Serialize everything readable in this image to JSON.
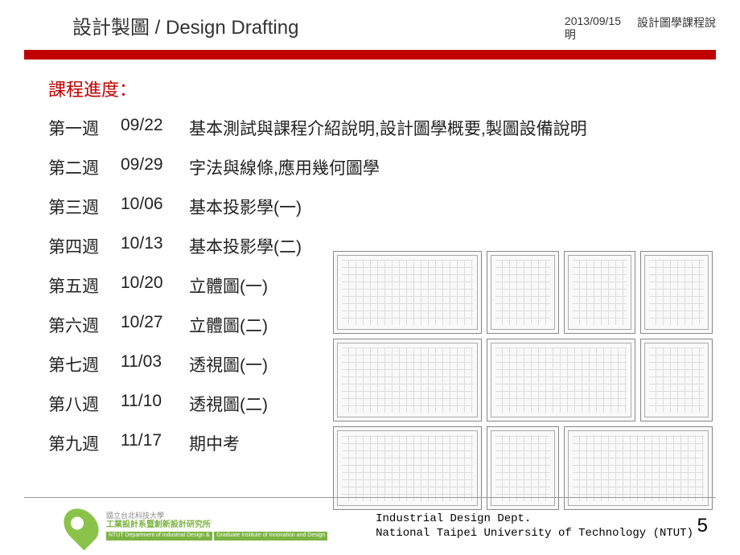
{
  "header": {
    "title": "設計製圖 / Design Drafting",
    "date": "2013/09/15",
    "date_sub": "明",
    "course_label": "設計圖學課程說"
  },
  "section_title": "課程進度：",
  "schedule": [
    {
      "week": "第一週",
      "date": "09/22",
      "topic": "基本測試與課程介紹說明,設計圖學概要,製圖設備說明"
    },
    {
      "week": "第二週",
      "date": "09/29",
      "topic": "字法與線條,應用幾何圖學"
    },
    {
      "week": "第三週",
      "date": "10/06",
      "topic": "基本投影學(一)"
    },
    {
      "week": "第四週",
      "date": "10/13",
      "topic": "基本投影學(二)"
    },
    {
      "week": "第五週",
      "date": "10/20",
      "topic": "立體圖(一)"
    },
    {
      "week": "第六週",
      "date": "10/27",
      "topic": "立體圖(二)"
    },
    {
      "week": "第七週",
      "date": "11/03",
      "topic": "透視圖(一)"
    },
    {
      "week": "第八週",
      "date": "11/10",
      "topic": "透視圖(二)"
    },
    {
      "week": "第九週",
      "date": "11/17",
      "topic": "期中考"
    }
  ],
  "footer": {
    "uni_cn": "國立台北科技大學",
    "dept_cn": "工業設計系暨創新設計研究所",
    "dept_en1": "NTUT Department of Industrial Design &",
    "dept_en2": "Graduate Institute of Innovation and Design",
    "line1": "Industrial Design Dept.",
    "line2": "National Taipei University of Technology (NTUT)",
    "page": "5"
  },
  "colors": {
    "accent": "#c00000",
    "logo_green": "#8bc34a"
  }
}
